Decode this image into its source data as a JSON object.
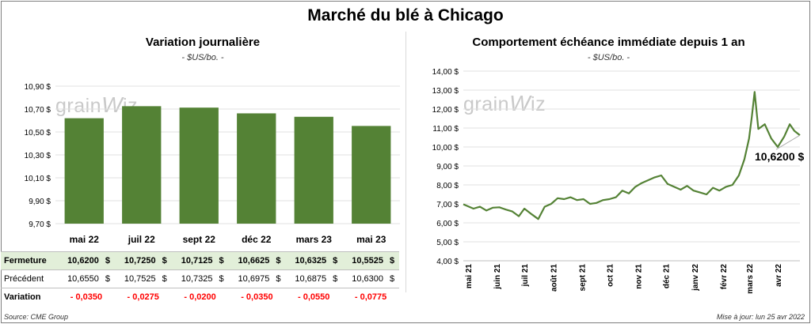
{
  "title": "Marché du blé à Chicago",
  "left": {
    "title": "Variation journalière",
    "unit": "- $US/bo. -"
  },
  "right": {
    "title": "Comportement  échéance immédiate depuis 1 an",
    "unit": "- $US/bo. -",
    "last_label": "10,6200 $"
  },
  "watermark": {
    "pre": "grain",
    "mark": "W",
    "post": "iz"
  },
  "table": {
    "headers": [
      "mai 22",
      "juil 22",
      "sept 22",
      "déc 22",
      "mars 23",
      "mai 23"
    ],
    "close_label": "Fermeture",
    "close": [
      "10,6200",
      "10,7250",
      "10,7125",
      "10,6625",
      "10,6325",
      "10,5525"
    ],
    "prev_label": "Précédent",
    "prev": [
      "10,6550",
      "10,7525",
      "10,7325",
      "10,6975",
      "10,6875",
      "10,6300"
    ],
    "var_label": "Variation",
    "var": [
      "- 0,0350",
      "- 0,0275",
      "- 0,0200",
      "- 0,0350",
      "- 0,0550",
      "- 0,0775"
    ],
    "currency": "$"
  },
  "source": "Source: CME Group",
  "updated": "Mise à jour: lun 25 avr 2022",
  "chart_data": [
    {
      "type": "bar",
      "title": "Variation journalière",
      "categories": [
        "mai 22",
        "juil 22",
        "sept 22",
        "déc 22",
        "mars 23",
        "mai 23"
      ],
      "values": [
        10.62,
        10.725,
        10.7125,
        10.6625,
        10.6325,
        10.5525
      ],
      "ylim": [
        9.7,
        10.9
      ],
      "yticks": [
        "9,70 $",
        "9,90 $",
        "10,10 $",
        "10,30 $",
        "10,50 $",
        "10,70 $",
        "10,90 $"
      ],
      "color": "#548235"
    },
    {
      "type": "line",
      "title": "Comportement  échéance immédiate depuis 1 an",
      "ylim": [
        4,
        14
      ],
      "yticks": [
        "4,00 $",
        "5,00 $",
        "6,00 $",
        "7,00 $",
        "8,00 $",
        "9,00 $",
        "10,00 $",
        "11,00 $",
        "12,00 $",
        "13,00 $",
        "14,00 $"
      ],
      "xticks": [
        "mai 21",
        "juin 21",
        "juil 21",
        "août 21",
        "sept 21",
        "oct 21",
        "nov 21",
        "déc 21",
        "janv 22",
        "févr 22",
        "mars 22",
        "avr 22"
      ],
      "color": "#548235",
      "x": [
        "2021-04-26",
        "2021-05-07",
        "2021-05-14",
        "2021-05-21",
        "2021-05-28",
        "2021-06-04",
        "2021-06-11",
        "2021-06-18",
        "2021-06-25",
        "2021-07-01",
        "2021-07-09",
        "2021-07-16",
        "2021-07-23",
        "2021-07-30",
        "2021-08-06",
        "2021-08-13",
        "2021-08-20",
        "2021-08-27",
        "2021-09-03",
        "2021-09-10",
        "2021-09-17",
        "2021-09-24",
        "2021-10-01",
        "2021-10-08",
        "2021-10-15",
        "2021-10-22",
        "2021-10-29",
        "2021-11-05",
        "2021-11-12",
        "2021-11-19",
        "2021-11-26",
        "2021-12-03",
        "2021-12-10",
        "2021-12-17",
        "2021-12-24",
        "2021-12-31",
        "2022-01-07",
        "2022-01-14",
        "2022-01-21",
        "2022-01-28",
        "2022-02-04",
        "2022-02-11",
        "2022-02-18",
        "2022-02-24",
        "2022-03-01",
        "2022-03-04",
        "2022-03-07",
        "2022-03-11",
        "2022-03-18",
        "2022-03-25",
        "2022-04-01",
        "2022-04-08",
        "2022-04-14",
        "2022-04-19",
        "2022-04-25"
      ],
      "y": [
        6.98,
        6.75,
        6.85,
        6.65,
        6.8,
        6.82,
        6.7,
        6.6,
        6.35,
        6.75,
        6.45,
        6.2,
        6.85,
        7.0,
        7.3,
        7.25,
        7.35,
        7.2,
        7.25,
        7.0,
        7.05,
        7.2,
        7.25,
        7.35,
        7.7,
        7.55,
        7.9,
        8.1,
        8.25,
        8.4,
        8.5,
        8.05,
        7.9,
        7.75,
        7.95,
        7.7,
        7.6,
        7.5,
        7.85,
        7.7,
        7.9,
        8.0,
        8.5,
        9.35,
        10.45,
        11.6,
        12.9,
        10.95,
        11.2,
        10.45,
        10.0,
        10.55,
        11.2,
        10.85,
        10.62
      ]
    }
  ]
}
